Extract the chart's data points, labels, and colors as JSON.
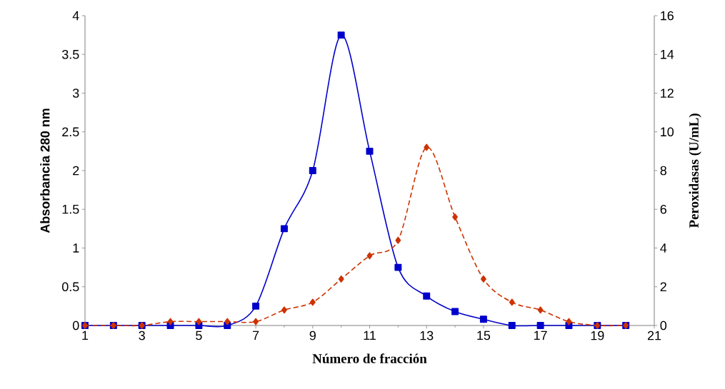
{
  "chart_data": {
    "type": "line",
    "xlabel": "Número de fracción",
    "ylabel": "Absorbancia  280 nm",
    "y2label": "Peroxidasas (U/mL)",
    "x": [
      1,
      2,
      3,
      4,
      5,
      6,
      7,
      8,
      9,
      10,
      11,
      12,
      13,
      14,
      15,
      16,
      17,
      18,
      19,
      20
    ],
    "series": [
      {
        "color": "#0000cc",
        "marker": "square",
        "line_style": "solid",
        "values": [
          0,
          0,
          0,
          0,
          0,
          0,
          0.25,
          1.25,
          2.0,
          3.75,
          2.25,
          0.75,
          0.38,
          0.18,
          0.08,
          0,
          0,
          0,
          0,
          0
        ]
      },
      {
        "color": "#cc3300",
        "marker": "diamond",
        "line_style": "dashed",
        "axis": "y2",
        "values": [
          0,
          0,
          0,
          0.2,
          0.2,
          0.2,
          0.2,
          0.8,
          1.2,
          2.4,
          3.6,
          4.4,
          9.2,
          5.6,
          2.4,
          1.2,
          0.8,
          0.2,
          0,
          0
        ]
      }
    ],
    "xlim": [
      1,
      21
    ],
    "xticks": [
      1,
      3,
      5,
      7,
      9,
      11,
      13,
      15,
      17,
      19,
      21
    ],
    "ylim": [
      0,
      4
    ],
    "yticks": [
      0,
      0.5,
      1,
      1.5,
      2,
      2.5,
      3,
      3.5,
      4
    ],
    "y2lim": [
      0,
      16
    ],
    "y2ticks": [
      0,
      2,
      4,
      6,
      8,
      10,
      12,
      14,
      16
    ],
    "grid": false
  }
}
